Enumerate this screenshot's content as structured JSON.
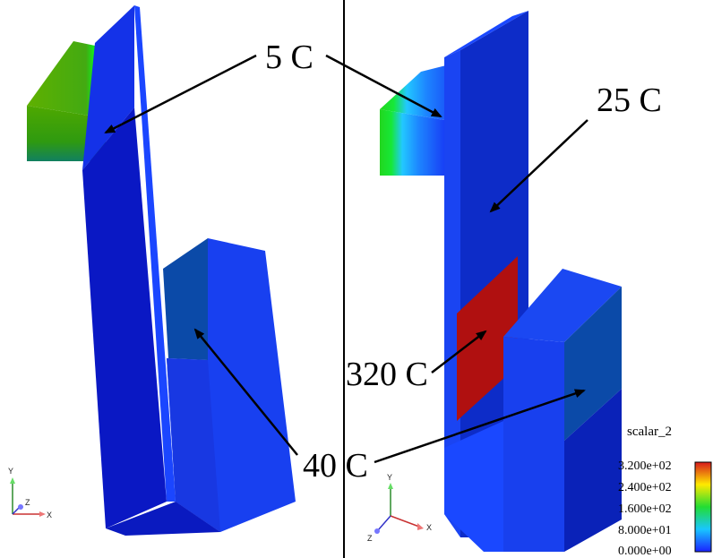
{
  "annotations": {
    "five_c": "5 C",
    "twentyfive_c": "25 C",
    "threetwenty_c": "320 C",
    "forty_c": "40 C"
  },
  "legend": {
    "title": "scalar_2",
    "ticks": [
      "3.200e+02",
      "2.400e+02",
      "1.600e+02",
      "8.000e+01",
      "0.000e+00"
    ],
    "colors": [
      "#d7191c",
      "#ffea00",
      "#22dd33",
      "#19c6ff",
      "#1a22ff"
    ]
  },
  "axes_triad": {
    "y": "Y",
    "z": "Z",
    "x": "X"
  },
  "colors": {
    "dark_blue": "#0a14c8",
    "mid_blue": "#1540ee",
    "face_blue": "#0f30dc",
    "steel_blue": "#0b4aa8",
    "hot_red": "#b01010",
    "green": "#5cb000"
  }
}
